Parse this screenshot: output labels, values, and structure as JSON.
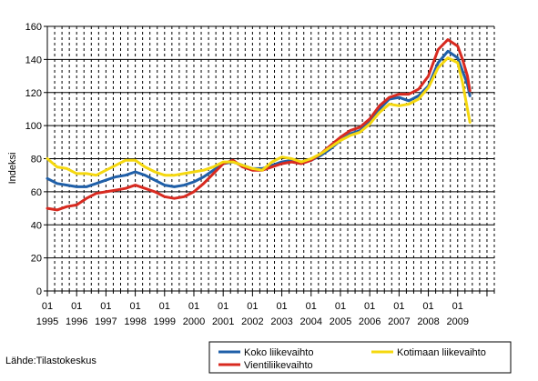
{
  "chart_data": {
    "type": "line",
    "title": "",
    "xlabel": "",
    "ylabel": "Indeksi",
    "ylim": [
      0,
      160
    ],
    "yticks": [
      0,
      20,
      40,
      60,
      80,
      100,
      120,
      140,
      160
    ],
    "xrange": [
      "1995-01",
      "2010-04"
    ],
    "xtick_month_label": "01",
    "years": [
      "1995",
      "1996",
      "1997",
      "1998",
      "1999",
      "2000",
      "2001",
      "2002",
      "2003",
      "2004",
      "2005",
      "2006",
      "2007",
      "2008",
      "2009"
    ],
    "grid": {
      "horizontal": "solid",
      "vertical": "dashed"
    },
    "legend_position": "bottom-right",
    "series": [
      {
        "name": "Koko liikevaihto",
        "color": "#1f5fa8",
        "points": [
          [
            "1995-01",
            68
          ],
          [
            "1995-05",
            65
          ],
          [
            "1995-09",
            64
          ],
          [
            "1996-01",
            63
          ],
          [
            "1996-05",
            63
          ],
          [
            "1996-09",
            65
          ],
          [
            "1997-01",
            67
          ],
          [
            "1997-05",
            69
          ],
          [
            "1997-09",
            70
          ],
          [
            "1998-01",
            72
          ],
          [
            "1998-05",
            70
          ],
          [
            "1998-09",
            67
          ],
          [
            "1999-01",
            64
          ],
          [
            "1999-05",
            63
          ],
          [
            "1999-09",
            64
          ],
          [
            "2000-01",
            66
          ],
          [
            "2000-05",
            69
          ],
          [
            "2000-09",
            73
          ],
          [
            "2001-01",
            77
          ],
          [
            "2001-05",
            78
          ],
          [
            "2001-09",
            76
          ],
          [
            "2002-01",
            74
          ],
          [
            "2002-05",
            74
          ],
          [
            "2002-09",
            76
          ],
          [
            "2003-01",
            78
          ],
          [
            "2003-05",
            79
          ],
          [
            "2003-09",
            78
          ],
          [
            "2004-01",
            79
          ],
          [
            "2004-05",
            82
          ],
          [
            "2004-09",
            86
          ],
          [
            "2005-01",
            91
          ],
          [
            "2005-05",
            95
          ],
          [
            "2005-09",
            97
          ],
          [
            "2006-01",
            102
          ],
          [
            "2006-05",
            110
          ],
          [
            "2006-09",
            116
          ],
          [
            "2007-01",
            117
          ],
          [
            "2007-05",
            115
          ],
          [
            "2007-09",
            118
          ],
          [
            "2008-01",
            124
          ],
          [
            "2008-05",
            138
          ],
          [
            "2008-09",
            145
          ],
          [
            "2009-01",
            141
          ],
          [
            "2009-03",
            133
          ],
          [
            "2009-05",
            125
          ],
          [
            "2009-06",
            118
          ]
        ]
      },
      {
        "name": "Vientiliikevaihto",
        "color": "#d82a20",
        "points": [
          [
            "1995-01",
            50
          ],
          [
            "1995-05",
            49
          ],
          [
            "1995-09",
            51
          ],
          [
            "1996-01",
            52
          ],
          [
            "1996-05",
            56
          ],
          [
            "1996-09",
            59
          ],
          [
            "1997-01",
            60
          ],
          [
            "1997-05",
            61
          ],
          [
            "1997-09",
            62
          ],
          [
            "1998-01",
            64
          ],
          [
            "1998-05",
            62
          ],
          [
            "1998-09",
            60
          ],
          [
            "1999-01",
            57
          ],
          [
            "1999-05",
            56
          ],
          [
            "1999-09",
            57
          ],
          [
            "2000-01",
            60
          ],
          [
            "2000-05",
            65
          ],
          [
            "2000-09",
            71
          ],
          [
            "2001-01",
            77
          ],
          [
            "2001-05",
            79
          ],
          [
            "2001-09",
            75
          ],
          [
            "2002-01",
            73
          ],
          [
            "2002-05",
            73
          ],
          [
            "2002-09",
            75
          ],
          [
            "2003-01",
            77
          ],
          [
            "2003-05",
            78
          ],
          [
            "2003-09",
            77
          ],
          [
            "2004-01",
            79
          ],
          [
            "2004-05",
            83
          ],
          [
            "2004-09",
            88
          ],
          [
            "2005-01",
            93
          ],
          [
            "2005-05",
            97
          ],
          [
            "2005-09",
            99
          ],
          [
            "2006-01",
            104
          ],
          [
            "2006-05",
            112
          ],
          [
            "2006-09",
            117
          ],
          [
            "2007-01",
            119
          ],
          [
            "2007-05",
            119
          ],
          [
            "2007-09",
            122
          ],
          [
            "2008-01",
            130
          ],
          [
            "2008-05",
            146
          ],
          [
            "2008-09",
            152
          ],
          [
            "2009-01",
            148
          ],
          [
            "2009-03",
            140
          ],
          [
            "2009-05",
            130
          ],
          [
            "2009-06",
            121
          ]
        ]
      },
      {
        "name": "Kotimaan liikevaihto",
        "color": "#f5d80f",
        "points": [
          [
            "1995-01",
            80
          ],
          [
            "1995-05",
            75
          ],
          [
            "1995-09",
            74
          ],
          [
            "1996-01",
            71
          ],
          [
            "1996-05",
            71
          ],
          [
            "1996-09",
            70
          ],
          [
            "1997-01",
            73
          ],
          [
            "1997-05",
            76
          ],
          [
            "1997-09",
            79
          ],
          [
            "1998-01",
            79
          ],
          [
            "1998-05",
            75
          ],
          [
            "1998-09",
            72
          ],
          [
            "1999-01",
            70
          ],
          [
            "1999-05",
            70
          ],
          [
            "1999-09",
            71
          ],
          [
            "2000-01",
            72
          ],
          [
            "2000-05",
            73
          ],
          [
            "2000-09",
            75
          ],
          [
            "2001-01",
            78
          ],
          [
            "2001-05",
            78
          ],
          [
            "2001-09",
            76
          ],
          [
            "2002-01",
            74
          ],
          [
            "2002-05",
            73
          ],
          [
            "2002-09",
            78
          ],
          [
            "2003-01",
            81
          ],
          [
            "2003-05",
            80
          ],
          [
            "2003-09",
            78
          ],
          [
            "2004-01",
            80
          ],
          [
            "2004-05",
            83
          ],
          [
            "2004-09",
            87
          ],
          [
            "2005-01",
            91
          ],
          [
            "2005-05",
            94
          ],
          [
            "2005-09",
            96
          ],
          [
            "2006-01",
            101
          ],
          [
            "2006-05",
            108
          ],
          [
            "2006-09",
            113
          ],
          [
            "2007-01",
            112
          ],
          [
            "2007-05",
            113
          ],
          [
            "2007-09",
            116
          ],
          [
            "2008-01",
            123
          ],
          [
            "2008-05",
            135
          ],
          [
            "2008-09",
            141
          ],
          [
            "2009-01",
            138
          ],
          [
            "2009-03",
            126
          ],
          [
            "2009-05",
            110
          ],
          [
            "2009-06",
            102
          ]
        ]
      }
    ],
    "legend_order": [
      "Koko liikevaihto",
      "Kotimaan liikevaihto",
      "Vientiliikevaihto"
    ]
  },
  "source_text": "Lähde:Tilastokeskus"
}
